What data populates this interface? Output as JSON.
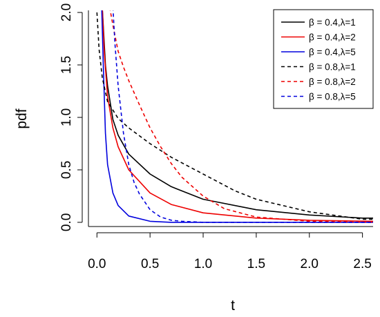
{
  "chart_data": {
    "type": "line",
    "title": "",
    "xlabel": "t",
    "ylabel": "pdf",
    "xlim": [
      -0.08,
      2.6
    ],
    "ylim": [
      -0.04,
      2.02
    ],
    "x_ticks": [
      0.0,
      0.5,
      1.0,
      1.5,
      2.0,
      2.5
    ],
    "x_tick_labels": [
      "0.0",
      "0.5",
      "1.0",
      "1.5",
      "2.0",
      "2.5"
    ],
    "y_ticks": [
      0.0,
      0.5,
      1.0,
      1.5,
      2.0
    ],
    "y_tick_labels": [
      "0.0",
      "0.5",
      "1.0",
      "1.5",
      "2.0"
    ],
    "grid": false,
    "legend_position": "top-right",
    "series": [
      {
        "name": "β = 0.4,λ=1",
        "color": "#000000",
        "dash": "solid",
        "x": [
          0.05,
          0.08,
          0.1,
          0.15,
          0.2,
          0.3,
          0.5,
          0.7,
          1.0,
          1.5,
          2.0,
          2.5,
          2.6
        ],
        "y": [
          2.05,
          1.5,
          1.3,
          0.98,
          0.83,
          0.65,
          0.46,
          0.34,
          0.22,
          0.12,
          0.07,
          0.04,
          0.04
        ]
      },
      {
        "name": "β = 0.4,λ=2",
        "color": "#ee0000",
        "dash": "solid",
        "x": [
          0.05,
          0.07,
          0.1,
          0.15,
          0.2,
          0.3,
          0.5,
          0.7,
          1.0,
          1.5,
          2.0,
          2.6
        ],
        "y": [
          2.05,
          1.6,
          1.2,
          0.9,
          0.72,
          0.5,
          0.28,
          0.17,
          0.09,
          0.04,
          0.02,
          0.01
        ]
      },
      {
        "name": "β = 0.4,λ=5",
        "color": "#0000dd",
        "dash": "solid",
        "x": [
          0.045,
          0.06,
          0.08,
          0.1,
          0.15,
          0.2,
          0.3,
          0.5,
          0.7,
          1.0,
          2.6
        ],
        "y": [
          2.05,
          1.5,
          0.85,
          0.55,
          0.28,
          0.16,
          0.06,
          0.01,
          0.0,
          0.0,
          0.0
        ]
      },
      {
        "name": "β = 0.8,λ=1",
        "color": "#000000",
        "dash": "dashed",
        "x": [
          0.0,
          0.02,
          0.05,
          0.1,
          0.2,
          0.3,
          0.5,
          0.7,
          1.0,
          1.3,
          1.5,
          2.0,
          2.5,
          2.6
        ],
        "y": [
          2.0,
          1.65,
          1.38,
          1.15,
          0.99,
          0.9,
          0.75,
          0.62,
          0.46,
          0.3,
          0.22,
          0.1,
          0.03,
          0.03
        ]
      },
      {
        "name": "β = 0.8,λ=2",
        "color": "#ee0000",
        "dash": "dashed",
        "x": [
          0.12,
          0.15,
          0.2,
          0.25,
          0.3,
          0.4,
          0.5,
          0.6,
          0.7,
          0.8,
          1.0,
          1.2,
          1.5,
          2.0,
          2.6
        ],
        "y": [
          2.05,
          1.88,
          1.63,
          1.48,
          1.35,
          1.12,
          0.9,
          0.72,
          0.56,
          0.43,
          0.25,
          0.13,
          0.05,
          0.01,
          0.0
        ]
      },
      {
        "name": "β = 0.8,λ=5",
        "color": "#0000dd",
        "dash": "dashed",
        "x": [
          0.15,
          0.17,
          0.2,
          0.25,
          0.3,
          0.35,
          0.4,
          0.5,
          0.6,
          0.7,
          0.8,
          1.0,
          1.5,
          2.6
        ],
        "y": [
          2.05,
          1.7,
          1.3,
          0.85,
          0.55,
          0.38,
          0.27,
          0.12,
          0.05,
          0.02,
          0.01,
          0.0,
          0.0,
          0.0
        ]
      }
    ]
  }
}
